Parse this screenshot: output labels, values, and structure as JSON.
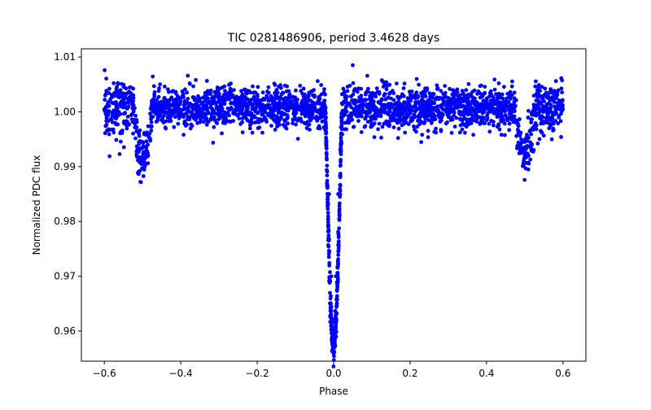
{
  "chart_data": {
    "type": "scatter",
    "title": "TIC 0281486906, period 3.4628 days",
    "xlabel": "Phase",
    "ylabel": "Normalized PDC flux",
    "xlim": [
      -0.66,
      0.66
    ],
    "ylim": [
      0.9545,
      1.0115
    ],
    "xticks": [
      -0.6,
      -0.4,
      -0.2,
      0.0,
      0.2,
      0.4,
      0.6
    ],
    "xtick_labels": [
      "−0.6",
      "−0.4",
      "−0.2",
      "0.0",
      "0.2",
      "0.4",
      "0.6"
    ],
    "yticks": [
      0.96,
      0.97,
      0.98,
      0.99,
      1.0,
      1.01
    ],
    "ytick_labels": [
      "0.96",
      "0.97",
      "0.98",
      "0.99",
      "1.00",
      "1.01"
    ],
    "grid": false,
    "legend": null,
    "marker_color": "#0000ff",
    "series": [
      {
        "x_range": [
          -0.6,
          0.6
        ],
        "baseline_flux": 1.0007,
        "scatter": 0.0022,
        "primary_eclipse": {
          "phase": 0.0,
          "min_flux": 0.9575,
          "half_width": 0.022
        },
        "secondary_eclipse": {
          "phases": [
            -0.5,
            0.5
          ],
          "min_flux": 0.9915,
          "half_width": 0.025
        },
        "sample_points": [
          [
            -0.6,
            1.0005
          ],
          [
            -0.55,
            1.0008
          ],
          [
            -0.5,
            0.9945
          ],
          [
            -0.49,
            0.9925
          ],
          [
            -0.45,
            1.0007
          ],
          [
            -0.3,
            1.0006
          ],
          [
            -0.1,
            1.0005
          ],
          [
            -0.02,
            0.999
          ],
          [
            -0.012,
            0.985
          ],
          [
            -0.006,
            0.97
          ],
          [
            0.0,
            0.958
          ],
          [
            0.006,
            0.97
          ],
          [
            0.012,
            0.985
          ],
          [
            0.02,
            0.999
          ],
          [
            0.05,
            1.0085
          ],
          [
            0.1,
            1.0007
          ],
          [
            0.3,
            1.0006
          ],
          [
            0.45,
            1.0007
          ],
          [
            0.5,
            0.9945
          ],
          [
            0.51,
            0.992
          ],
          [
            0.55,
            1.0007
          ],
          [
            0.6,
            1.0005
          ]
        ]
      }
    ]
  }
}
